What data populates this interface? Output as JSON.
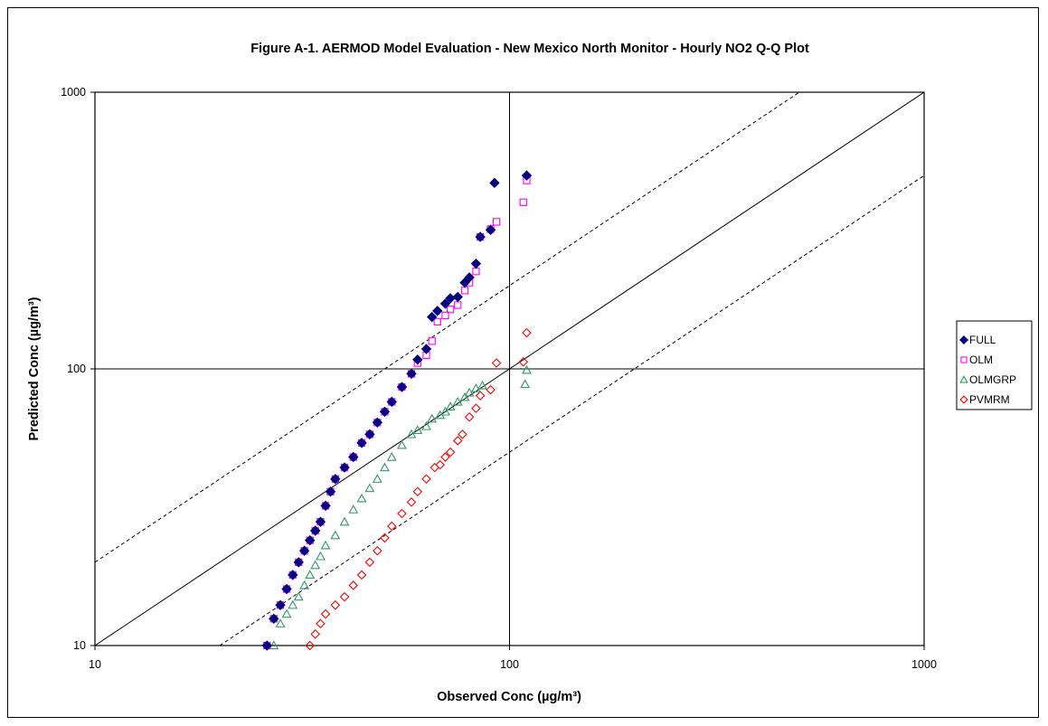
{
  "chart_data": {
    "type": "scatter",
    "title": "Figure A-1.  AERMOD Model Evaluation - New Mexico North Monitor - Hourly NO2 Q-Q Plot",
    "xlabel": "Observed  Conc (µg/m³)",
    "ylabel": "Predicted Conc (µg/m³)",
    "xscale": "log",
    "yscale": "log",
    "xlim": [
      10,
      1000
    ],
    "ylim": [
      10,
      1000
    ],
    "xticks": [
      "10",
      "100",
      "1000"
    ],
    "yticks": [
      "10",
      "100",
      "1000"
    ],
    "grid": "major gridlines at 100 on both axes",
    "legend_position": "right",
    "reference_lines": [
      {
        "name": "1:1",
        "factor": 1,
        "style": "solid"
      },
      {
        "name": "factor of 2 over",
        "factor": 2,
        "style": "dashed"
      },
      {
        "name": "factor of 2 under",
        "factor": 0.5,
        "style": "dashed"
      }
    ],
    "series": [
      {
        "name": "FULL",
        "marker": "diamond-filled",
        "color": "#000080",
        "x": [
          26,
          27,
          28,
          29,
          30,
          31,
          32,
          33,
          34,
          35,
          36,
          37,
          38,
          40,
          42,
          44,
          46,
          48,
          50,
          52,
          55,
          58,
          60,
          63,
          65,
          67,
          70,
          72,
          75,
          78,
          80,
          83,
          85,
          90,
          92,
          110
        ],
        "y": [
          10,
          12.5,
          14,
          16,
          18,
          20,
          22,
          24,
          26,
          28,
          32,
          36,
          40,
          44,
          48,
          54,
          58,
          64,
          70,
          76,
          86,
          96,
          108,
          118,
          154,
          162,
          172,
          180,
          182,
          205,
          214,
          240,
          300,
          318,
          470,
          500
        ]
      },
      {
        "name": "OLM",
        "marker": "square-open",
        "color": "#FF00FF",
        "x": [
          26,
          27,
          28,
          29,
          30,
          31,
          32,
          33,
          34,
          35,
          36,
          37,
          38,
          40,
          42,
          44,
          46,
          48,
          50,
          52,
          55,
          58,
          60,
          63,
          65,
          67,
          70,
          72,
          75,
          78,
          80,
          83,
          85,
          90,
          93,
          108,
          110
        ],
        "y": [
          10,
          12.5,
          14,
          16,
          18,
          20,
          22,
          24,
          26,
          28,
          32,
          36,
          40,
          44,
          48,
          54,
          58,
          64,
          70,
          76,
          86,
          96,
          105,
          112,
          126,
          148,
          156,
          164,
          170,
          192,
          205,
          225,
          300,
          320,
          340,
          400,
          480
        ]
      },
      {
        "name": "OLMGRP",
        "marker": "triangle-open",
        "color": "#339966",
        "x": [
          27,
          28,
          29,
          30,
          31,
          32,
          33,
          34,
          35,
          36,
          38,
          40,
          42,
          44,
          46,
          48,
          50,
          52,
          55,
          58,
          60,
          63,
          65,
          68,
          70,
          72,
          75,
          78,
          80,
          83,
          86,
          109,
          110
        ],
        "y": [
          10,
          12,
          13,
          14,
          15,
          16.5,
          18,
          19.5,
          21,
          23,
          25,
          28,
          31,
          34,
          37,
          40,
          44,
          48,
          53,
          58,
          60,
          62,
          66,
          68,
          70,
          73,
          76,
          79,
          82,
          85,
          87,
          88,
          99
        ]
      },
      {
        "name": "PVMRM",
        "marker": "diamond-open",
        "color": "#FF0000",
        "x": [
          33,
          34,
          35,
          36,
          38,
          40,
          42,
          44,
          46,
          48,
          50,
          52,
          55,
          58,
          60,
          63,
          66,
          68,
          70,
          72,
          75,
          77,
          80,
          83,
          85,
          90,
          93,
          108,
          110
        ],
        "y": [
          10,
          11,
          12,
          13,
          14,
          15,
          16.5,
          18,
          20,
          22,
          24.5,
          27,
          30,
          33,
          36,
          40,
          44,
          45,
          48,
          50,
          55,
          58,
          67,
          72,
          80,
          84,
          105,
          106,
          135
        ]
      }
    ]
  }
}
